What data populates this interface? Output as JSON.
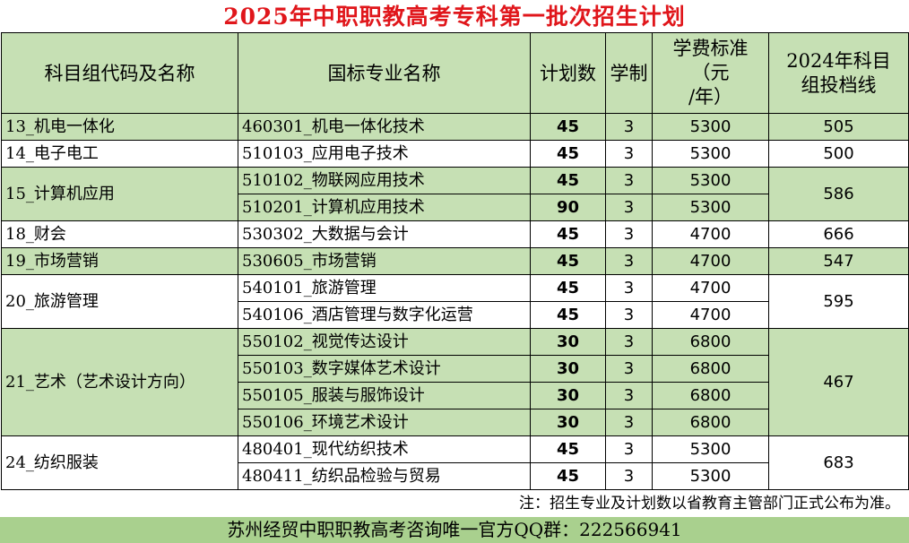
{
  "title": "2025年中职职教高考专科第一批次招生计划",
  "headers": {
    "group": "科目组代码及名称",
    "major": "国标专业名称",
    "plan": "计划数",
    "years": "学制",
    "fee_l1": "学费标准",
    "fee_l2": "（元",
    "fee_l3": "/年）",
    "score_l1": "2024年科目",
    "score_l2": "组投档线"
  },
  "groups": [
    {
      "name": "13_机电一体化",
      "score": "505",
      "rows": [
        {
          "major": "460301_机电一体化技术",
          "plan": "45",
          "years": "3",
          "fee": "5300"
        }
      ]
    },
    {
      "name": "14_电子电工",
      "score": "500",
      "rows": [
        {
          "major": "510103_应用电子技术",
          "plan": "45",
          "years": "3",
          "fee": "5300"
        }
      ]
    },
    {
      "name": "15_计算机应用",
      "score": "586",
      "rows": [
        {
          "major": "510102_物联网应用技术",
          "plan": "45",
          "years": "3",
          "fee": "5300"
        },
        {
          "major": "510201_计算机应用技术",
          "plan": "90",
          "years": "3",
          "fee": "5300"
        }
      ]
    },
    {
      "name": "18_财会",
      "score": "666",
      "rows": [
        {
          "major": "530302_大数据与会计",
          "plan": "45",
          "years": "3",
          "fee": "4700"
        }
      ]
    },
    {
      "name": "19_市场营销",
      "score": "547",
      "rows": [
        {
          "major": "530605_市场营销",
          "plan": "45",
          "years": "3",
          "fee": "4700"
        }
      ]
    },
    {
      "name": "20_旅游管理",
      "score": "595",
      "rows": [
        {
          "major": "540101_旅游管理",
          "plan": "45",
          "years": "3",
          "fee": "4700"
        },
        {
          "major": "540106_酒店管理与数字化运营",
          "plan": "45",
          "years": "3",
          "fee": "4700"
        }
      ]
    },
    {
      "name": "21_艺术（艺术设计方向）",
      "score": "467",
      "rows": [
        {
          "major": "550102_视觉传达设计",
          "plan": "30",
          "years": "3",
          "fee": "6800"
        },
        {
          "major": "550103_数字媒体艺术设计",
          "plan": "30",
          "years": "3",
          "fee": "6800"
        },
        {
          "major": "550105_服装与服饰设计",
          "plan": "30",
          "years": "3",
          "fee": "6800"
        },
        {
          "major": "550106_环境艺术设计",
          "plan": "30",
          "years": "3",
          "fee": "6800"
        }
      ]
    },
    {
      "name": "24_纺织服装",
      "score": "683",
      "rows": [
        {
          "major": "480401_现代纺织技术",
          "plan": "45",
          "years": "3",
          "fee": "5300"
        },
        {
          "major": "480411_纺织品检验与贸易",
          "plan": "45",
          "years": "3",
          "fee": "5300"
        }
      ]
    }
  ],
  "note": "注：招生专业及计划数以省教育主管部门正式公布为准。",
  "footer": "苏州经贸中职职教高考咨询唯一官方QQ群：222566941",
  "colors": {
    "title": "#e0161b",
    "header_bg": "#c6e0b4",
    "group_bg": "#c6e0b4",
    "footer_bg": "#a9d08e"
  }
}
